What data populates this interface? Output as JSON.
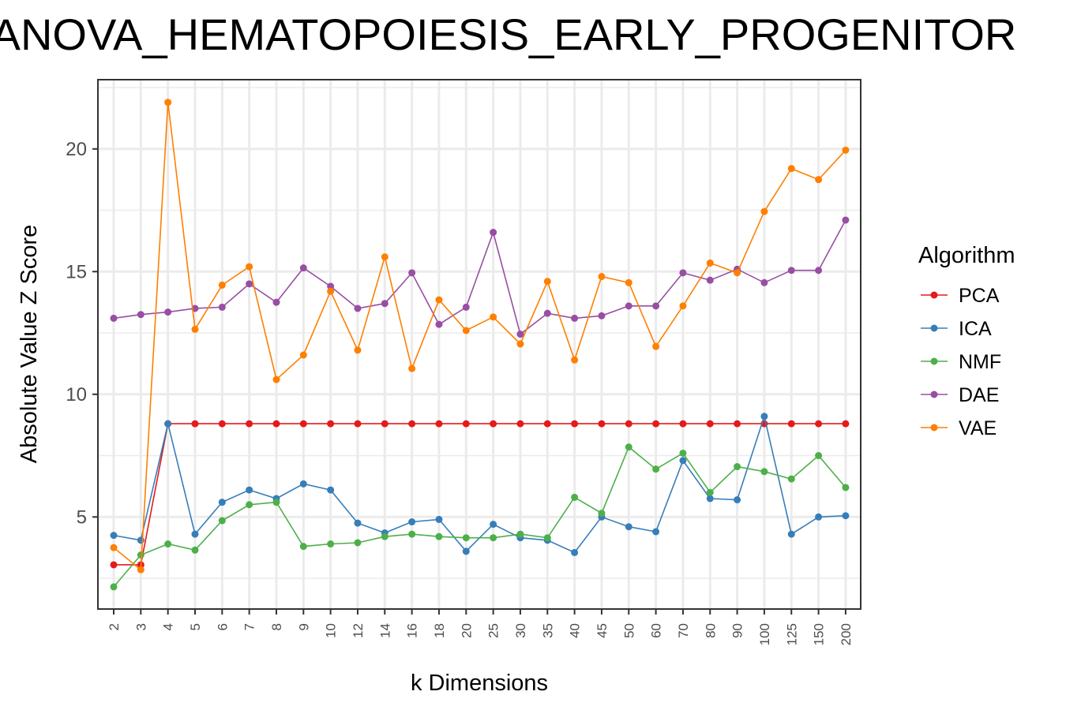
{
  "chart_data": {
    "type": "line",
    "title": "ANOVA_HEMATOPOIESIS_EARLY_PROGENITOR",
    "xlabel": "k Dimensions",
    "ylabel": "Absolute Value Z Score",
    "categories": [
      "2",
      "3",
      "4",
      "5",
      "6",
      "7",
      "8",
      "9",
      "10",
      "12",
      "14",
      "16",
      "18",
      "20",
      "25",
      "30",
      "35",
      "40",
      "45",
      "50",
      "60",
      "70",
      "80",
      "90",
      "100",
      "125",
      "150",
      "200"
    ],
    "yticks": [
      5,
      10,
      15,
      20
    ],
    "ylim": [
      1.4,
      23
    ],
    "grid": true,
    "legend": {
      "title": "Algorithm",
      "position": "right"
    },
    "series": [
      {
        "name": "PCA",
        "color": "#E41A1C",
        "values": [
          3.05,
          3.05,
          8.8,
          8.8,
          8.8,
          8.8,
          8.8,
          8.8,
          8.8,
          8.8,
          8.8,
          8.8,
          8.8,
          8.8,
          8.8,
          8.8,
          8.8,
          8.8,
          8.8,
          8.8,
          8.8,
          8.8,
          8.8,
          8.8,
          8.8,
          8.8,
          8.8,
          8.8
        ]
      },
      {
        "name": "ICA",
        "color": "#377EB8",
        "values": [
          4.25,
          4.05,
          8.8,
          4.3,
          5.6,
          6.1,
          5.75,
          6.35,
          6.1,
          4.75,
          4.35,
          4.8,
          4.9,
          3.6,
          4.7,
          4.15,
          4.05,
          3.55,
          5.0,
          4.6,
          4.4,
          7.3,
          5.75,
          5.7,
          9.1,
          4.3,
          5.0,
          5.05
        ]
      },
      {
        "name": "NMF",
        "color": "#4DAF4A",
        "values": [
          2.15,
          3.45,
          3.9,
          3.65,
          4.85,
          5.5,
          5.6,
          3.8,
          3.9,
          3.95,
          4.2,
          4.3,
          4.2,
          4.15,
          4.15,
          4.3,
          4.15,
          5.8,
          5.15,
          7.85,
          6.95,
          7.6,
          6.0,
          7.05,
          6.85,
          6.55,
          7.5,
          6.2
        ]
      },
      {
        "name": "DAE",
        "color": "#984EA3",
        "values": [
          13.1,
          13.25,
          13.35,
          13.5,
          13.55,
          14.5,
          13.75,
          15.15,
          14.4,
          13.5,
          13.7,
          14.95,
          12.85,
          13.55,
          16.6,
          12.45,
          13.3,
          13.1,
          13.2,
          13.6,
          13.6,
          14.95,
          14.65,
          15.1,
          14.55,
          15.05,
          15.05,
          17.1
        ]
      },
      {
        "name": "VAE",
        "color": "#FF7F00",
        "values": [
          3.75,
          2.85,
          21.9,
          12.65,
          14.45,
          15.2,
          10.6,
          11.6,
          14.2,
          11.8,
          15.6,
          11.05,
          13.85,
          12.6,
          13.15,
          12.05,
          14.6,
          11.4,
          14.8,
          14.55,
          11.95,
          13.6,
          15.35,
          14.95,
          17.45,
          19.2,
          18.75,
          19.95
        ]
      }
    ]
  }
}
